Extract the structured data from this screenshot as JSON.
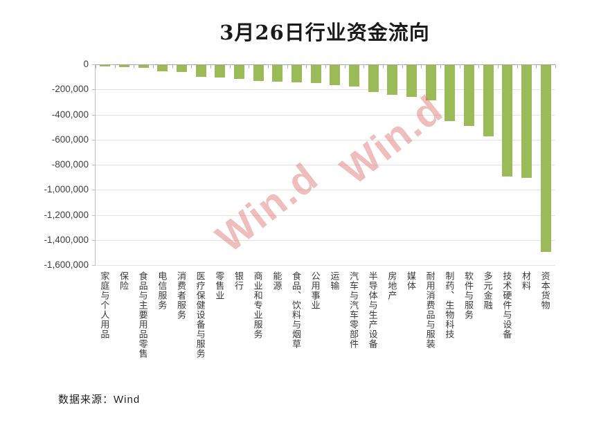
{
  "title": "3月26日行业资金流向",
  "source_note": "数据来源：Wind",
  "watermark": "Win.d",
  "colors": {
    "bar": "#9bbb59",
    "gridline": "#e4e4e4",
    "axis": "#a6a6a6",
    "watermark": "rgba(222,108,108,0.45)"
  },
  "chart_data": {
    "type": "bar",
    "title": "3月26日行业资金流向",
    "xlabel": "",
    "ylabel": "",
    "ylim": [
      -1600000,
      0
    ],
    "grid": true,
    "legend": false,
    "bar_color": "#9bbb59",
    "ytick_labels": [
      "0",
      "-200,000",
      "-400,000",
      "-600,000",
      "-800,000",
      "-1,000,000",
      "-1,200,000",
      "-1,400,000",
      "-1,600,000"
    ],
    "categories": [
      "家庭与个人用品",
      "保险",
      "食品与主要用品零售",
      "电信服务",
      "消费者服务",
      "医疗保健设备与服务",
      "零售业",
      "银行",
      "商业和专业服务",
      "能源",
      "食品、饮料与烟草",
      "公用事业",
      "运输",
      "汽车与汽车零部件",
      "半导体与生产设备",
      "房地产",
      "媒体",
      "耐用消费品与服装",
      "制药、生物科技",
      "软件与服务",
      "多元金融",
      "技术硬件与设备",
      "材料",
      "资本货物"
    ],
    "values": [
      -12000,
      -15000,
      -20000,
      -50000,
      -55000,
      -95000,
      -100000,
      -110000,
      -125000,
      -135000,
      -140000,
      -145000,
      -160000,
      -170000,
      -213000,
      -235000,
      -255000,
      -282000,
      -447000,
      -483000,
      -570000,
      -890000,
      -900000,
      -1490000
    ]
  }
}
